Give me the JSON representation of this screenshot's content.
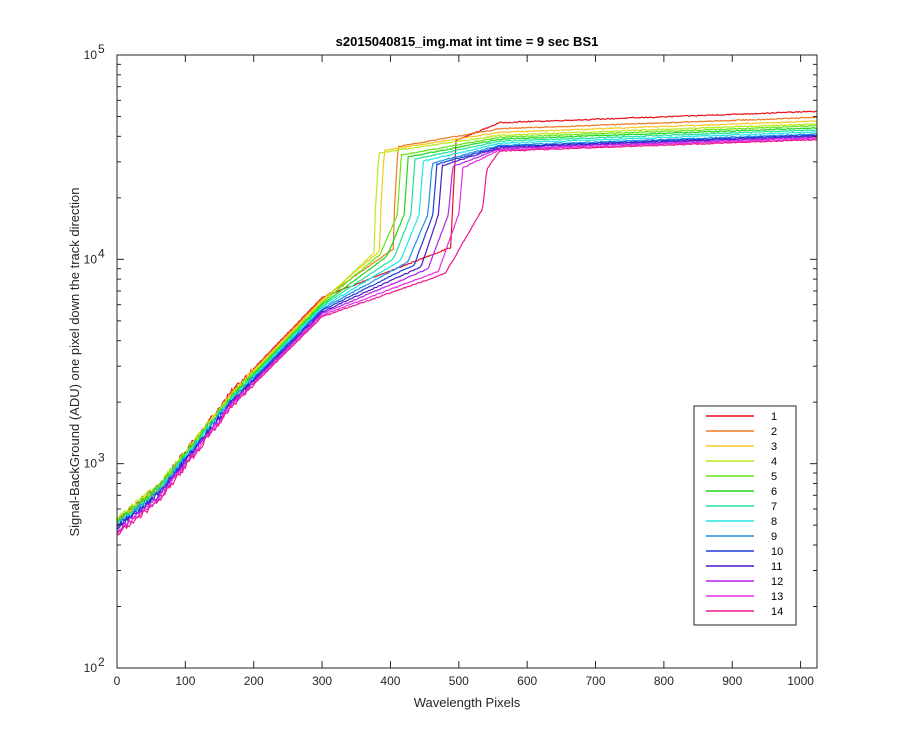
{
  "chart_data": {
    "type": "line",
    "title": "s2015040815_img.mat int time = 9 sec   BS1",
    "xlabel": "Wavelength Pixels",
    "ylabel": "Signal-BackGround (ADU) one pixel down the track direction",
    "xlim": [
      0,
      1024
    ],
    "ylim": [
      100,
      100000
    ],
    "yscale": "log",
    "x_ticks": [
      0,
      100,
      200,
      300,
      400,
      500,
      600,
      700,
      800,
      900,
      1000
    ],
    "x_tick_labels": [
      "0",
      "100",
      "200",
      "300",
      "400",
      "500",
      "600",
      "700",
      "800",
      "900",
      "1000"
    ],
    "y_ticks": [
      100,
      1000,
      10000,
      100000
    ],
    "y_tick_bases": [
      "10",
      "10",
      "10",
      "10"
    ],
    "y_tick_exponents": [
      "2",
      "3",
      "4",
      "5"
    ],
    "legend_position": "lower-right",
    "series": [
      {
        "name": "1",
        "color": "#e8101a",
        "start": 530,
        "knee": 490,
        "jump": 490,
        "final": 53000
      },
      {
        "name": "2",
        "color": "#ee7a22",
        "start": 510,
        "knee": 405,
        "jump": 405,
        "final": 49500
      },
      {
        "name": "3",
        "color": "#f7c81e",
        "start": 520,
        "knee": 385,
        "jump": 385,
        "final": 47500
      },
      {
        "name": "4",
        "color": "#b8ea1c",
        "start": 540,
        "knee": 377,
        "jump": 377,
        "final": 46000
      },
      {
        "name": "5",
        "color": "#66e61a",
        "start": 530,
        "knee": 385,
        "jump": 410,
        "final": 45000
      },
      {
        "name": "6",
        "color": "#1fd81f",
        "start": 520,
        "knee": 395,
        "jump": 420,
        "final": 44000
      },
      {
        "name": "7",
        "color": "#1fe29a",
        "start": 510,
        "knee": 405,
        "jump": 430,
        "final": 43000
      },
      {
        "name": "8",
        "color": "#20e6e6",
        "start": 500,
        "knee": 415,
        "jump": 442,
        "final": 42000
      },
      {
        "name": "9",
        "color": "#1e8fe6",
        "start": 500,
        "knee": 425,
        "jump": 455,
        "final": 41000
      },
      {
        "name": "10",
        "color": "#1a3cd8",
        "start": 490,
        "knee": 435,
        "jump": 462,
        "final": 40500
      },
      {
        "name": "11",
        "color": "#4a1cc8",
        "start": 480,
        "knee": 445,
        "jump": 470,
        "final": 40000
      },
      {
        "name": "12",
        "color": "#b422e6",
        "start": 470,
        "knee": 455,
        "jump": 485,
        "final": 39500
      },
      {
        "name": "13",
        "color": "#e82ee0",
        "start": 460,
        "knee": 470,
        "jump": 500,
        "final": 39000
      },
      {
        "name": "14",
        "color": "#ec1a8c",
        "start": 450,
        "knee": 480,
        "jump": 535,
        "final": 38500
      }
    ]
  }
}
